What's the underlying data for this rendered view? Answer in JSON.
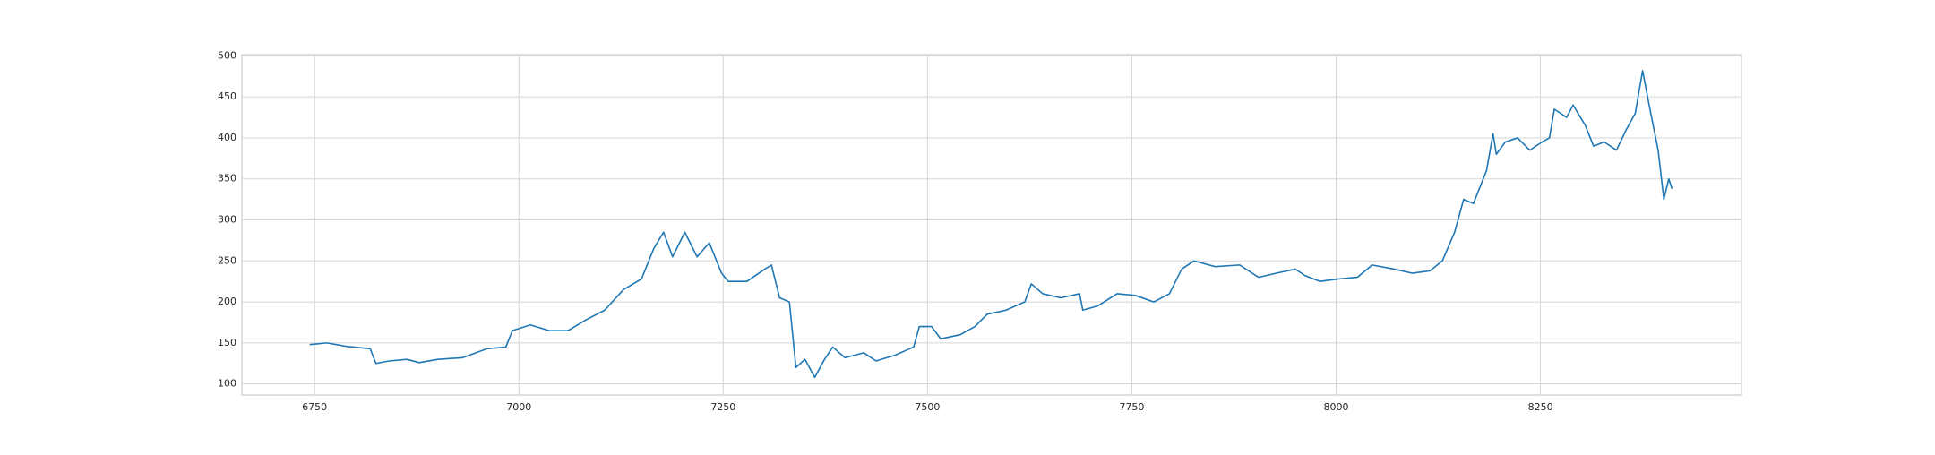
{
  "chart_data": {
    "type": "line",
    "color": "#1f77b4",
    "grid": true,
    "xlim": [
      6661,
      8496
    ],
    "ylim": [
      86.5,
      501.5
    ],
    "xticks": [
      6750,
      7000,
      7250,
      7500,
      7750,
      8000,
      8250
    ],
    "yticks": [
      100,
      150,
      200,
      250,
      300,
      350,
      400,
      450,
      500
    ],
    "x": [
      6744,
      6765,
      6788,
      6818,
      6825,
      6841,
      6863,
      6878,
      6901,
      6931,
      6961,
      6984,
      6992,
      7014,
      7037,
      7060,
      7082,
      7105,
      7128,
      7150,
      7165,
      7177,
      7188,
      7203,
      7218,
      7233,
      7248,
      7256,
      7279,
      7301,
      7309,
      7319,
      7331,
      7339,
      7350,
      7362,
      7374,
      7384,
      7399,
      7422,
      7437,
      7460,
      7483,
      7490,
      7505,
      7516,
      7540,
      7558,
      7573,
      7596,
      7619,
      7627,
      7641,
      7663,
      7686,
      7690,
      7708,
      7732,
      7754,
      7777,
      7796,
      7811,
      7826,
      7852,
      7882,
      7905,
      7927,
      7950,
      7962,
      7980,
      8003,
      8026,
      8044,
      8071,
      8093,
      8115,
      8130,
      8145,
      8156,
      8168,
      8184,
      8192,
      8196,
      8207,
      8222,
      8237,
      8252,
      8261,
      8267,
      8282,
      8290,
      8305,
      8315,
      8328,
      8343,
      8355,
      8366,
      8375,
      8383,
      8394,
      8401,
      8407,
      8411
    ],
    "values": [
      148,
      150,
      146,
      143,
      125,
      128,
      130,
      126,
      130,
      132,
      143,
      145,
      165,
      172,
      165,
      165,
      178,
      190,
      215,
      228,
      265,
      285,
      255,
      285,
      255,
      272,
      235,
      225,
      225,
      240,
      245,
      205,
      200,
      120,
      130,
      108,
      130,
      145,
      132,
      138,
      128,
      135,
      145,
      170,
      170,
      155,
      160,
      170,
      185,
      190,
      200,
      222,
      210,
      205,
      210,
      190,
      195,
      210,
      208,
      200,
      210,
      240,
      250,
      243,
      245,
      230,
      235,
      240,
      232,
      225,
      228,
      230,
      245,
      240,
      235,
      238,
      250,
      285,
      325,
      320,
      360,
      405,
      380,
      395,
      400,
      385,
      395,
      400,
      435,
      425,
      440,
      415,
      390,
      395,
      385,
      410,
      430,
      482,
      440,
      385,
      325,
      350,
      338
    ]
  }
}
